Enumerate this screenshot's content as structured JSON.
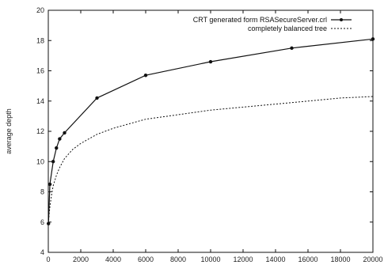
{
  "chart_data": {
    "type": "line",
    "xlabel": "",
    "ylabel": "average depth",
    "xlim": [
      0,
      20000
    ],
    "ylim": [
      4,
      20
    ],
    "xticks": [
      0,
      2000,
      4000,
      6000,
      8000,
      10000,
      12000,
      14000,
      16000,
      18000,
      20000
    ],
    "yticks": [
      4,
      6,
      8,
      10,
      12,
      14,
      16,
      18,
      20
    ],
    "grid": false,
    "legend_position": "top-right",
    "series": [
      {
        "name": "CRT generated form RSASecureServer.crl",
        "style": "solid-markers",
        "color": "#111111",
        "x": [
          10,
          100,
          300,
          500,
          700,
          1000,
          3000,
          6000,
          10000,
          15000,
          20000
        ],
        "y": [
          5.9,
          8.5,
          10.0,
          10.9,
          11.5,
          11.9,
          14.2,
          15.7,
          16.6,
          17.5,
          18.1
        ]
      },
      {
        "name": "completely balanced tree",
        "style": "dashed",
        "color": "#111111",
        "x": [
          10,
          50,
          100,
          200,
          300,
          500,
          700,
          1000,
          1500,
          2000,
          3000,
          4000,
          5000,
          6000,
          8000,
          10000,
          12000,
          14000,
          16000,
          18000,
          20000
        ],
        "y": [
          5.9,
          6.5,
          7.0,
          7.8,
          8.4,
          9.1,
          9.6,
          10.2,
          10.8,
          11.2,
          11.8,
          12.2,
          12.5,
          12.8,
          13.1,
          13.4,
          13.6,
          13.8,
          14.0,
          14.2,
          14.3
        ]
      }
    ]
  }
}
